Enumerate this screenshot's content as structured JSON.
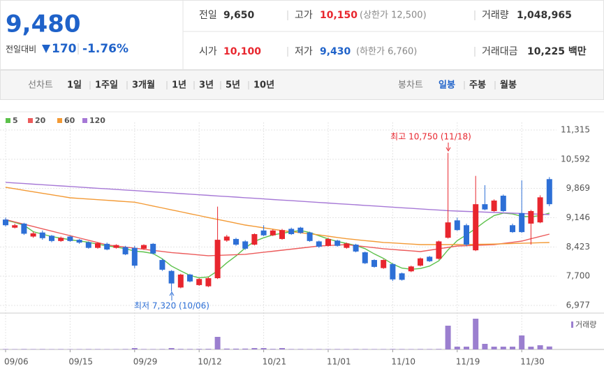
{
  "header": {
    "price": "9,480",
    "change_label": "전일대비",
    "change": "170",
    "change_rate": "-1.76%",
    "cells": [
      {
        "label": "전일",
        "value": "9,650"
      },
      {
        "label": "고가",
        "value": "10,150",
        "note": "(상한가 12,500)"
      },
      {
        "label": "거래량",
        "value": "1,048,965"
      },
      {
        "label": "시가",
        "value": "10,100"
      },
      {
        "label": "저가",
        "value": "9,430",
        "note": "(하한가 6,760)"
      },
      {
        "label": "거래대금",
        "value": "10,225 백만"
      }
    ]
  },
  "tabs": {
    "line_chart": "선차트",
    "line_periods": [
      "1일",
      "1주일",
      "3개월",
      "1년",
      "3년",
      "5년",
      "10년"
    ],
    "candle_chart": "봉차트",
    "candle_periods": [
      "일봉",
      "주봉",
      "월봉"
    ]
  },
  "chart_data": {
    "type": "candlestick",
    "categories": [
      "09/06",
      null,
      null,
      null,
      null,
      null,
      null,
      "09/15",
      null,
      null,
      null,
      null,
      null,
      null,
      "09/29",
      null,
      null,
      null,
      null,
      null,
      null,
      "10/12",
      null,
      null,
      null,
      null,
      null,
      null,
      "10/21",
      null,
      null,
      null,
      null,
      null,
      null,
      "11/01",
      null,
      null,
      null,
      null,
      null,
      null,
      "11/10",
      null,
      null,
      null,
      null,
      null,
      null,
      "11/19",
      null,
      null,
      null,
      null,
      null,
      null,
      "11/30",
      null,
      null,
      null
    ],
    "open": [
      9100,
      8900,
      9000,
      8680,
      8780,
      8700,
      8570,
      8680,
      8600,
      8540,
      8400,
      8500,
      8400,
      8420,
      8400,
      8380,
      8500,
      8100,
      7830,
      7420,
      7740,
      7480,
      7450,
      7650,
      8580,
      8620,
      8560,
      8480,
      8830,
      8710,
      8620,
      8870,
      8900,
      8780,
      8560,
      8450,
      8580,
      8400,
      8480,
      8290,
      8100,
      7900,
      8000,
      7770,
      7820,
      7960,
      8180,
      8130,
      8650,
      9080,
      8960,
      8340,
      9480,
      9310,
      9690,
      8960,
      9260,
      9000,
      9030,
      10100
    ],
    "high": [
      9150,
      9000,
      9020,
      8800,
      8830,
      8720,
      8680,
      8700,
      8620,
      8560,
      8540,
      8530,
      8490,
      8450,
      8450,
      8490,
      8520,
      8130,
      7850,
      7760,
      7760,
      7650,
      7680,
      9420,
      8720,
      8650,
      8590,
      8760,
      8960,
      8860,
      8870,
      8900,
      8920,
      8800,
      8580,
      8650,
      8600,
      8530,
      8500,
      8310,
      8120,
      8120,
      8020,
      7790,
      7960,
      8160,
      8200,
      8580,
      10750,
      9150,
      9000,
      10180,
      9950,
      9600,
      9720,
      9000,
      10070,
      9340,
      9700,
      10150
    ],
    "low": [
      8930,
      8880,
      8720,
      8650,
      8600,
      8540,
      8550,
      8550,
      8500,
      8380,
      8380,
      8340,
      8380,
      8220,
      7900,
      8350,
      8240,
      7830,
      7320,
      7400,
      7550,
      7460,
      7430,
      7630,
      8550,
      8450,
      8350,
      8460,
      8690,
      8690,
      8600,
      8720,
      8750,
      8550,
      8400,
      8430,
      8430,
      8380,
      8290,
      8000,
      7910,
      7880,
      7580,
      7590,
      7800,
      7940,
      8050,
      8110,
      8630,
      8820,
      8440,
      8320,
      9330,
      9290,
      9290,
      8770,
      8770,
      8480,
      9010,
      9430
    ],
    "close": [
      8960,
      8960,
      8750,
      8760,
      8640,
      8570,
      8650,
      8570,
      8530,
      8400,
      8520,
      8360,
      8470,
      8240,
      7960,
      8470,
      8260,
      7860,
      7520,
      7740,
      7570,
      7630,
      7650,
      8600,
      8680,
      8480,
      8380,
      8740,
      8710,
      8830,
      8840,
      8740,
      8770,
      8570,
      8430,
      8620,
      8450,
      8510,
      8310,
      8020,
      7930,
      8100,
      7620,
      7610,
      7940,
      8140,
      8070,
      8560,
      9030,
      8840,
      8480,
      9480,
      9350,
      9570,
      9310,
      8790,
      8790,
      9310,
      9650,
      9480
    ],
    "up_color": "#e8262e",
    "down_color": "#2d6fd6",
    "ylim": [
      6787,
      11505
    ],
    "yticks": [
      {
        "value": 6977,
        "label": "6,977"
      },
      {
        "value": 7700,
        "label": "7,700"
      },
      {
        "value": 8423,
        "label": "8,423"
      },
      {
        "value": 9146,
        "label": "9,146"
      },
      {
        "value": 9869,
        "label": "9,869"
      },
      {
        "value": 10592,
        "label": "10,592"
      },
      {
        "value": 11315,
        "label": "11,315"
      }
    ],
    "grid": true,
    "series": [
      {
        "name": "5",
        "color": "#5cc14a",
        "values": [
          9086,
          9030,
          8960,
          8800,
          8740,
          8680,
          8640,
          8602,
          8570,
          8540,
          8490,
          8450,
          8420,
          8380,
          8320,
          8300,
          8260,
          8130,
          7950,
          7830,
          7720,
          7660,
          7680,
          7830,
          8030,
          8200,
          8400,
          8560,
          8650,
          8720,
          8760,
          8800,
          8830,
          8780,
          8700,
          8620,
          8560,
          8510,
          8460,
          8380,
          8250,
          8140,
          8000,
          7900,
          7870,
          7890,
          7950,
          8080,
          8350,
          8580,
          8720,
          8880,
          9050,
          9200,
          9260,
          9240,
          9180,
          9170,
          9200,
          9260
        ]
      },
      {
        "name": "20",
        "color": "#ec5b5b",
        "values": [
          9100,
          9043,
          8986,
          8929,
          8872,
          8815,
          8758,
          8701,
          8644,
          8587,
          8530,
          8473,
          8446,
          8419,
          8392,
          8365,
          8338,
          8311,
          8284,
          8264,
          8245,
          8225,
          8205,
          8214,
          8223,
          8231,
          8240,
          8266,
          8292,
          8317,
          8343,
          8369,
          8395,
          8420,
          8446,
          8458,
          8469,
          8481,
          8455,
          8430,
          8404,
          8378,
          8361,
          8343,
          8326,
          8308,
          8343,
          8377,
          8412,
          8446,
          8455,
          8464,
          8472,
          8481,
          8510,
          8538,
          8567,
          8625,
          8682,
          8740
        ]
      },
      {
        "name": "60",
        "color": "#f39a35",
        "values": [
          9898,
          9861,
          9824,
          9787,
          9750,
          9713,
          9676,
          9639,
          9623,
          9608,
          9592,
          9577,
          9561,
          9546,
          9530,
          9483,
          9435,
          9388,
          9340,
          9293,
          9245,
          9198,
          9150,
          9104,
          9058,
          9011,
          8965,
          8931,
          8896,
          8862,
          8827,
          8800,
          8774,
          8747,
          8720,
          8688,
          8657,
          8625,
          8603,
          8580,
          8558,
          8535,
          8522,
          8508,
          8495,
          8481,
          8481,
          8480,
          8480,
          8480,
          8484,
          8488,
          8491,
          8495,
          8501,
          8508,
          8514,
          8520,
          8527,
          8533
        ]
      },
      {
        "name": "120",
        "color": "#a678d6",
        "values": [
          10020,
          10005,
          9991,
          9976,
          9962,
          9947,
          9932,
          9918,
          9903,
          9888,
          9874,
          9859,
          9845,
          9830,
          9816,
          9801,
          9786,
          9772,
          9757,
          9742,
          9728,
          9713,
          9699,
          9684,
          9670,
          9655,
          9640,
          9626,
          9611,
          9596,
          9582,
          9567,
          9553,
          9538,
          9523,
          9509,
          9494,
          9480,
          9465,
          9450,
          9436,
          9421,
          9407,
          9392,
          9377,
          9363,
          9348,
          9334,
          9320,
          9311,
          9302,
          9294,
          9285,
          9276,
          9267,
          9259,
          9250,
          9241,
          9233,
          9224
        ]
      }
    ],
    "volume": {
      "name": "거래량",
      "color": "#9b7fcf",
      "values": [
        150000,
        120000,
        160000,
        130000,
        150000,
        110000,
        140000,
        120000,
        130000,
        150000,
        140000,
        120000,
        110000,
        160000,
        500000,
        150000,
        140000,
        160000,
        500000,
        200000,
        180000,
        200000,
        220000,
        4500000,
        300000,
        280000,
        300000,
        500000,
        500000,
        200000,
        500000,
        150000,
        160000,
        140000,
        150000,
        130000,
        150000,
        140000,
        160000,
        150000,
        130000,
        140000,
        170000,
        150000,
        130000,
        160000,
        150000,
        180000,
        8500000,
        1000000,
        1000000,
        11000000,
        2000000,
        1000000,
        1000000,
        1000000,
        5000000,
        1000000,
        1500000,
        1048965
      ]
    },
    "annotations": [
      {
        "text": "최고 10,750 (11/18)",
        "color": "#e8262e"
      },
      {
        "text": "최저 7,320 (10/06)",
        "color": "#2d6fd6"
      }
    ]
  }
}
